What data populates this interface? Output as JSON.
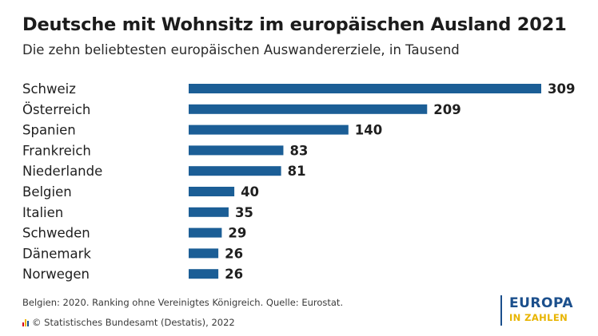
{
  "header": {
    "title": "Deutsche mit Wohnsitz im europäischen Ausland 2021",
    "subtitle": "Die zehn beliebtesten europäischen Auswandererziele, in Tausend"
  },
  "chart_data": {
    "type": "bar",
    "orientation": "horizontal",
    "categories": [
      "Schweiz",
      "Österreich",
      "Spanien",
      "Frankreich",
      "Niederlande",
      "Belgien",
      "Italien",
      "Schweden",
      "Dänemark",
      "Norwegen"
    ],
    "values": [
      309,
      209,
      140,
      83,
      81,
      40,
      35,
      29,
      26,
      26
    ],
    "value_labels": [
      "309",
      "209",
      "140",
      "83",
      "81",
      "40",
      "35",
      "29",
      "26",
      "26"
    ],
    "title": "Deutsche mit Wohnsitz im europäischen Ausland 2021",
    "subtitle": "Die zehn beliebtesten europäischen Auswandererziele, in Tausend",
    "xlim": [
      0,
      309
    ],
    "grid": false,
    "bar_color": "#1b5e96"
  },
  "footer": {
    "note": "Belgien: 2020. Ranking ohne Vereinigtes Königreich. Quelle: Eurostat.",
    "source": "© Statistisches Bundesamt (Destatis), 2022"
  },
  "logo": {
    "main": "EUROPA",
    "sub": "IN ZAHLEN",
    "colors": {
      "main": "#1b4f8c",
      "sub": "#e8b400"
    }
  }
}
